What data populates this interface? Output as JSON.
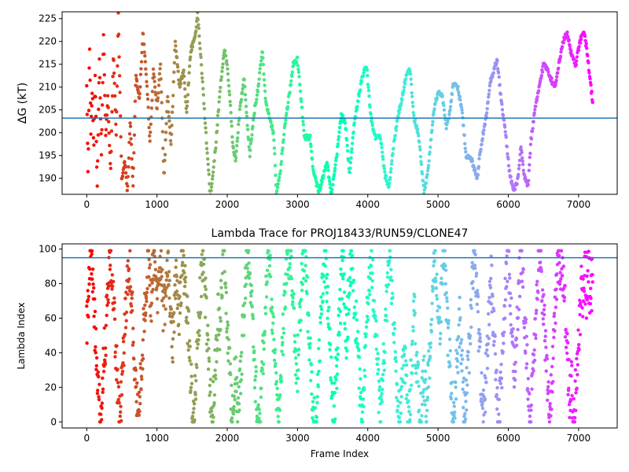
{
  "chart_data": [
    {
      "type": "scatter",
      "title": "",
      "xlabel": "",
      "ylabel": "ΔG (kT)",
      "xlim": [
        -350,
        7550
      ],
      "ylim": [
        186.5,
        226.5
      ],
      "xticks": [
        0,
        1000,
        2000,
        3000,
        4000,
        5000,
        6000,
        7000
      ],
      "yticks": [
        190,
        195,
        200,
        205,
        210,
        215,
        220,
        225
      ],
      "reference_line": 203.2,
      "reference_color": "#1f77b4",
      "colormap": "rainbow (red at first frame to violet at last frame)",
      "n_frames": 7200,
      "trace_keypoints": [
        [
          0,
          210
        ],
        [
          20,
          190
        ],
        [
          40,
          220
        ],
        [
          60,
          200
        ],
        [
          80,
          210
        ],
        [
          100,
          196
        ],
        [
          120,
          213
        ],
        [
          150,
          188
        ],
        [
          180,
          216
        ],
        [
          210,
          195
        ],
        [
          240,
          222
        ],
        [
          270,
          199
        ],
        [
          300,
          208
        ],
        [
          340,
          191
        ],
        [
          380,
          218
        ],
        [
          420,
          199
        ],
        [
          450,
          226
        ],
        [
          500,
          189
        ],
        [
          540,
          194
        ],
        [
          580,
          187
        ],
        [
          620,
          203
        ],
        [
          660,
          188
        ],
        [
          700,
          213
        ],
        [
          750,
          207
        ],
        [
          800,
          222
        ],
        [
          860,
          210
        ],
        [
          900,
          198
        ],
        [
          950,
          214
        ],
        [
          1000,
          205
        ],
        [
          1050,
          215
        ],
        [
          1100,
          190
        ],
        [
          1150,
          208
        ],
        [
          1200,
          197
        ],
        [
          1260,
          220
        ],
        [
          1320,
          210
        ],
        [
          1380,
          214
        ],
        [
          1420,
          204
        ],
        [
          1480,
          218
        ],
        [
          1540,
          221
        ],
        [
          1580,
          226
        ],
        [
          1640,
          213
        ],
        [
          1700,
          199
        ],
        [
          1760,
          186
        ],
        [
          1830,
          196
        ],
        [
          1900,
          210
        ],
        [
          1960,
          218
        ],
        [
          2000,
          215
        ],
        [
          2040,
          207
        ],
        [
          2080,
          197
        ],
        [
          2120,
          194
        ],
        [
          2180,
          205
        ],
        [
          2240,
          212
        ],
        [
          2280,
          203
        ],
        [
          2320,
          195
        ],
        [
          2380,
          204
        ],
        [
          2440,
          210
        ],
        [
          2500,
          218
        ],
        [
          2540,
          208
        ],
        [
          2600,
          203
        ],
        [
          2660,
          200
        ],
        [
          2700,
          187
        ],
        [
          2760,
          192
        ],
        [
          2820,
          202
        ],
        [
          2880,
          208
        ],
        [
          2940,
          215
        ],
        [
          3000,
          216
        ],
        [
          3060,
          206
        ],
        [
          3100,
          199
        ],
        [
          3180,
          199
        ],
        [
          3220,
          192
        ],
        [
          3300,
          187
        ],
        [
          3360,
          190
        ],
        [
          3420,
          194
        ],
        [
          3480,
          186
        ],
        [
          3560,
          195
        ],
        [
          3620,
          204
        ],
        [
          3680,
          202
        ],
        [
          3740,
          191
        ],
        [
          3800,
          201
        ],
        [
          3860,
          207
        ],
        [
          3920,
          212
        ],
        [
          3980,
          215
        ],
        [
          4040,
          204
        ],
        [
          4100,
          199
        ],
        [
          4180,
          199
        ],
        [
          4240,
          191
        ],
        [
          4300,
          188
        ],
        [
          4360,
          196
        ],
        [
          4420,
          203
        ],
        [
          4480,
          207
        ],
        [
          4540,
          212
        ],
        [
          4600,
          214
        ],
        [
          4660,
          203
        ],
        [
          4720,
          200
        ],
        [
          4800,
          187
        ],
        [
          4860,
          192
        ],
        [
          4940,
          205
        ],
        [
          5000,
          209
        ],
        [
          5060,
          208
        ],
        [
          5120,
          201
        ],
        [
          5160,
          204
        ],
        [
          5220,
          211
        ],
        [
          5280,
          210
        ],
        [
          5340,
          205
        ],
        [
          5400,
          195
        ],
        [
          5480,
          194
        ],
        [
          5560,
          190
        ],
        [
          5600,
          196
        ],
        [
          5680,
          203
        ],
        [
          5740,
          211
        ],
        [
          5780,
          213
        ],
        [
          5840,
          216
        ],
        [
          5900,
          207
        ],
        [
          5960,
          200
        ],
        [
          6020,
          191
        ],
        [
          6080,
          187
        ],
        [
          6140,
          190
        ],
        [
          6180,
          197
        ],
        [
          6220,
          191
        ],
        [
          6280,
          188
        ],
        [
          6320,
          198
        ],
        [
          6380,
          205
        ],
        [
          6440,
          210
        ],
        [
          6500,
          215
        ],
        [
          6560,
          214
        ],
        [
          6600,
          212
        ],
        [
          6660,
          210
        ],
        [
          6720,
          215
        ],
        [
          6780,
          220
        ],
        [
          6840,
          222
        ],
        [
          6900,
          217
        ],
        [
          6960,
          215
        ],
        [
          7020,
          220
        ],
        [
          7080,
          222
        ],
        [
          7120,
          218
        ],
        [
          7160,
          212
        ],
        [
          7200,
          207
        ]
      ]
    },
    {
      "type": "scatter",
      "title": "Lambda Trace for PROJ18433/RUN59/CLONE47",
      "xlabel": "Frame Index",
      "ylabel": "Lambda Index",
      "xlim": [
        -350,
        7550
      ],
      "ylim": [
        -3.5,
        103
      ],
      "xticks": [
        0,
        1000,
        2000,
        3000,
        4000,
        5000,
        6000,
        7000
      ],
      "yticks": [
        0,
        20,
        40,
        60,
        80,
        100
      ],
      "reference_line": 95,
      "reference_color": "#1f77b4",
      "colormap": "rainbow (red at first frame to violet at last frame)",
      "n_frames": 7200,
      "value_range": [
        0,
        99
      ]
    }
  ]
}
